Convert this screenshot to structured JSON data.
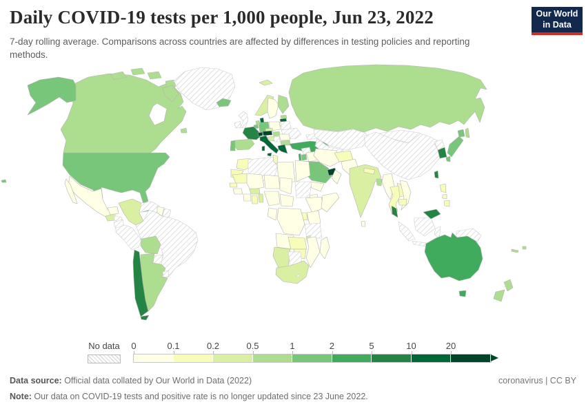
{
  "header": {
    "title": "Daily COVID-19 tests per 1,000 people, Jun 23, 2022",
    "subtitle": "7-day rolling average. Comparisons across countries are affected by differences in testing policies and reporting methods.",
    "logo": {
      "line1": "Our World",
      "line2": "in Data",
      "bg_color": "#12284c",
      "accent_color": "#d12d20"
    }
  },
  "legend": {
    "no_data_label": "No data",
    "tick_labels": [
      "0",
      "0.1",
      "0.2",
      "0.5",
      "1",
      "2",
      "5",
      "10",
      "20"
    ],
    "colors": [
      "#ffffe5",
      "#f7fcb9",
      "#d9f0a3",
      "#addd8e",
      "#78c679",
      "#41ab5d",
      "#238443",
      "#006837",
      "#004529"
    ]
  },
  "footer": {
    "source_label": "Data source:",
    "source_text": " Official data collated by Our World in Data (2022)",
    "note_label": "Note:",
    "note_text": " Our data on COVID-19 tests and positive rate is no longer updated since 23 June 2022.",
    "license": "coronavirus | CC BY"
  },
  "chart_data": {
    "type": "choropleth",
    "title": "Daily COVID-19 tests per 1,000 people",
    "date": "Jun 23, 2022",
    "unit": "tests per 1,000 people",
    "legend_position": "bottom",
    "no_data_style": "hatch",
    "bins": [
      {
        "label": "0-0.1",
        "color": "#ffffe5"
      },
      {
        "label": "0.1-0.2",
        "color": "#f7fcb9"
      },
      {
        "label": "0.2-0.5",
        "color": "#d9f0a3"
      },
      {
        "label": "0.5-1",
        "color": "#addd8e"
      },
      {
        "label": "1-2",
        "color": "#78c679"
      },
      {
        "label": "2-5",
        "color": "#41ab5d"
      },
      {
        "label": "5-10",
        "color": "#238443"
      },
      {
        "label": "10-20",
        "color": "#006837"
      },
      {
        "label": "20+",
        "color": "#004529"
      }
    ],
    "countries": {
      "greenland": {
        "bucket": "No data",
        "color": "hatch"
      },
      "iceland": {
        "bucket": "1-2",
        "color": "#78c679"
      },
      "canada": {
        "bucket": "0.5-1",
        "color": "#addd8e"
      },
      "united-states": {
        "bucket": "1-2",
        "color": "#78c679"
      },
      "mexico": {
        "bucket": "0-0.1",
        "color": "#ffffe5"
      },
      "guatemala": {
        "bucket": "0.2-0.5",
        "color": "#d9f0a3"
      },
      "honduras": {
        "bucket": "No data",
        "color": "hatch"
      },
      "nicaragua": {
        "bucket": "No data",
        "color": "hatch"
      },
      "costa-rica": {
        "bucket": "5-10",
        "color": "#238443"
      },
      "panama": {
        "bucket": "5-10",
        "color": "#238443"
      },
      "cuba": {
        "bucket": "No data",
        "color": "hatch"
      },
      "jamaica": {
        "bucket": "2-5",
        "color": "#41ab5d"
      },
      "dominican-republic": {
        "bucket": "1-2",
        "color": "#78c679"
      },
      "puerto-rico": {
        "bucket": "0.5-1",
        "color": "#addd8e"
      },
      "colombia": {
        "bucket": "0.2-0.5",
        "color": "#d9f0a3"
      },
      "venezuela": {
        "bucket": "No data",
        "color": "hatch"
      },
      "guyana": {
        "bucket": "0-0.1",
        "color": "#ffffe5"
      },
      "suriname": {
        "bucket": "No data",
        "color": "hatch"
      },
      "ecuador": {
        "bucket": "No data",
        "color": "hatch"
      },
      "peru": {
        "bucket": "No data",
        "color": "hatch"
      },
      "brazil": {
        "bucket": "No data",
        "color": "hatch"
      },
      "bolivia": {
        "bucket": "0.5-1",
        "color": "#addd8e"
      },
      "paraguay": {
        "bucket": "No data",
        "color": "hatch"
      },
      "uruguay": {
        "bucket": "No data",
        "color": "hatch"
      },
      "chile": {
        "bucket": "5-10",
        "color": "#238443"
      },
      "argentina": {
        "bucket": "0.5-1",
        "color": "#addd8e"
      },
      "ireland": {
        "bucket": "No data",
        "color": "hatch"
      },
      "united-kingdom": {
        "bucket": "No data",
        "color": "hatch"
      },
      "norway": {
        "bucket": "0.2-0.5",
        "color": "#d9f0a3"
      },
      "sweden": {
        "bucket": "0-0.1",
        "color": "#ffffe5"
      },
      "finland": {
        "bucket": "0.5-1",
        "color": "#addd8e"
      },
      "denmark": {
        "bucket": "10-20",
        "color": "#006837"
      },
      "estonia": {
        "bucket": "0.5-1",
        "color": "#addd8e"
      },
      "latvia": {
        "bucket": "10-20",
        "color": "#006837"
      },
      "lithuania": {
        "bucket": "0-0.1",
        "color": "#ffffe5"
      },
      "belarus": {
        "bucket": "No data",
        "color": "hatch"
      },
      "poland": {
        "bucket": "0-0.1",
        "color": "#ffffe5"
      },
      "germany": {
        "bucket": "1-2",
        "color": "#78c679"
      },
      "netherlands": {
        "bucket": "0.5-1",
        "color": "#addd8e"
      },
      "belgium": {
        "bucket": "1-2",
        "color": "#78c679"
      },
      "france": {
        "bucket": "5-10",
        "color": "#238443"
      },
      "spain": {
        "bucket": "0.5-1",
        "color": "#addd8e"
      },
      "portugal": {
        "bucket": "1-2",
        "color": "#78c679"
      },
      "switzerland": {
        "bucket": "20+",
        "color": "#004529"
      },
      "austria": {
        "bucket": "20+",
        "color": "#004529"
      },
      "czechia": {
        "bucket": "0.2-0.5",
        "color": "#d9f0a3"
      },
      "italy": {
        "bucket": "10-20",
        "color": "#006837"
      },
      "slovenia-croatia": {
        "bucket": "0.2-0.5",
        "color": "#d9f0a3"
      },
      "hungary": {
        "bucket": "0.5-1",
        "color": "#addd8e"
      },
      "serbia-bosnia": {
        "bucket": "No data",
        "color": "hatch"
      },
      "romania": {
        "bucket": "0-0.1",
        "color": "#ffffe5"
      },
      "bulgaria": {
        "bucket": "0.5-1",
        "color": "#addd8e"
      },
      "greece": {
        "bucket": "10-20",
        "color": "#006837"
      },
      "ukraine": {
        "bucket": "No data",
        "color": "hatch"
      },
      "russia": {
        "bucket": "0.5-1",
        "color": "#addd8e"
      },
      "svalbard": {
        "bucket": "0.2-0.5",
        "color": "#d9f0a3"
      },
      "turkey": {
        "bucket": "2-5",
        "color": "#41ab5d"
      },
      "caucasus": {
        "bucket": "No data",
        "color": "hatch"
      },
      "kazakhstan": {
        "bucket": "No data",
        "color": "hatch"
      },
      "central-asia": {
        "bucket": "No data",
        "color": "hatch"
      },
      "mongolia": {
        "bucket": "No data",
        "color": "hatch"
      },
      "china": {
        "bucket": "No data",
        "color": "hatch"
      },
      "north-korea": {
        "bucket": "No data",
        "color": "hatch"
      },
      "south-korea": {
        "bucket": "5-10",
        "color": "#238443"
      },
      "japan": {
        "bucket": "1-2",
        "color": "#78c679"
      },
      "taiwan": {
        "bucket": "5-10",
        "color": "#238443"
      },
      "syria": {
        "bucket": "No data",
        "color": "hatch"
      },
      "iraq": {
        "bucket": "0-0.1",
        "color": "#ffffe5"
      },
      "iran": {
        "bucket": "0-0.1",
        "color": "#ffffe5"
      },
      "israel": {
        "bucket": "2-5",
        "color": "#41ab5d"
      },
      "jordan": {
        "bucket": "1-2",
        "color": "#78c679"
      },
      "saudi-arabia": {
        "bucket": "1-2",
        "color": "#78c679"
      },
      "united-arab-emirates": {
        "bucket": "20+",
        "color": "#004529"
      },
      "oman": {
        "bucket": "0-0.1",
        "color": "#ffffe5"
      },
      "yemen": {
        "bucket": "0-0.1",
        "color": "#ffffe5"
      },
      "afghanistan": {
        "bucket": "0.1-0.2",
        "color": "#f7fcb9"
      },
      "pakistan": {
        "bucket": "0-0.1",
        "color": "#ffffe5"
      },
      "india": {
        "bucket": "0.2-0.5",
        "color": "#d9f0a3"
      },
      "nepal": {
        "bucket": "0.1-0.2",
        "color": "#f7fcb9"
      },
      "bangladesh": {
        "bucket": "0.5-1",
        "color": "#addd8e"
      },
      "sri-lanka": {
        "bucket": "0-0.1",
        "color": "#ffffe5"
      },
      "myanmar": {
        "bucket": "0-0.1",
        "color": "#ffffe5"
      },
      "thailand": {
        "bucket": "0.1-0.2",
        "color": "#f7fcb9"
      },
      "laos": {
        "bucket": "0.1-0.2",
        "color": "#f7fcb9"
      },
      "vietnam": {
        "bucket": "0-0.1",
        "color": "#ffffe5"
      },
      "cambodia": {
        "bucket": "0.1-0.2",
        "color": "#f7fcb9"
      },
      "malaysia": {
        "bucket": "5-10",
        "color": "#238443"
      },
      "indonesia": {
        "bucket": "No data",
        "color": "hatch"
      },
      "papua-new-guinea": {
        "bucket": "No data",
        "color": "hatch"
      },
      "philippines": {
        "bucket": "0.1-0.2",
        "color": "#f7fcb9"
      },
      "australia": {
        "bucket": "2-5",
        "color": "#41ab5d"
      },
      "new-zealand": {
        "bucket": "0.5-1",
        "color": "#addd8e"
      },
      "new-caledonia": {
        "bucket": "0.5-1",
        "color": "#addd8e"
      },
      "fiji": {
        "bucket": "0.5-1",
        "color": "#addd8e"
      },
      "morocco": {
        "bucket": "0.1-0.2",
        "color": "#f7fcb9"
      },
      "western-sahara": {
        "bucket": "0.1-0.2",
        "color": "#f7fcb9"
      },
      "algeria": {
        "bucket": "No data",
        "color": "hatch"
      },
      "tunisia": {
        "bucket": "0.1-0.2",
        "color": "#f7fcb9"
      },
      "libya": {
        "bucket": "0-0.1",
        "color": "#ffffe5"
      },
      "egypt": {
        "bucket": "0-0.1",
        "color": "#ffffe5"
      },
      "mauritania": {
        "bucket": "0.1-0.2",
        "color": "#f7fcb9"
      },
      "mali": {
        "bucket": "0-0.1",
        "color": "#ffffe5"
      },
      "niger": {
        "bucket": "0-0.1",
        "color": "#ffffe5"
      },
      "chad": {
        "bucket": "0-0.1",
        "color": "#ffffe5"
      },
      "sudan": {
        "bucket": "No data",
        "color": "hatch"
      },
      "eritrea": {
        "bucket": "0-0.1",
        "color": "#ffffe5"
      },
      "ethiopia": {
        "bucket": "0-0.1",
        "color": "#ffffe5"
      },
      "somalia": {
        "bucket": "0-0.1",
        "color": "#ffffe5"
      },
      "kenya": {
        "bucket": "0-0.1",
        "color": "#ffffe5"
      },
      "uganda": {
        "bucket": "0.1-0.2",
        "color": "#f7fcb9"
      },
      "rwanda": {
        "bucket": "2-5",
        "color": "#41ab5d"
      },
      "tanzania": {
        "bucket": "No data",
        "color": "hatch"
      },
      "dr-congo": {
        "bucket": "0-0.1",
        "color": "#ffffe5"
      },
      "congo-gabon": {
        "bucket": "0-0.1",
        "color": "#ffffe5"
      },
      "nigeria": {
        "bucket": "0-0.1",
        "color": "#ffffe5"
      },
      "central-african-republic": {
        "bucket": "0-0.1",
        "color": "#ffffe5"
      },
      "senegal": {
        "bucket": "0.1-0.2",
        "color": "#f7fcb9"
      },
      "guinea": {
        "bucket": "0-0.1",
        "color": "#ffffe5"
      },
      "cote-divoire": {
        "bucket": "0-0.1",
        "color": "#ffffe5"
      },
      "ghana": {
        "bucket": "0.1-0.2",
        "color": "#f7fcb9"
      },
      "burkina-faso": {
        "bucket": "0.2-0.5",
        "color": "#d9f0a3"
      },
      "benin-togo": {
        "bucket": "0.2-0.5",
        "color": "#d9f0a3"
      },
      "angola": {
        "bucket": "0-0.1",
        "color": "#ffffe5"
      },
      "zambia": {
        "bucket": "0.1-0.2",
        "color": "#f7fcb9"
      },
      "zimbabwe": {
        "bucket": "0.1-0.2",
        "color": "#f7fcb9"
      },
      "malawi": {
        "bucket": "0.2-0.5",
        "color": "#d9f0a3"
      },
      "mozambique": {
        "bucket": "0-0.1",
        "color": "#ffffe5"
      },
      "namibia": {
        "bucket": "0.2-0.5",
        "color": "#d9f0a3"
      },
      "botswana": {
        "bucket": "No data",
        "color": "hatch"
      },
      "south-africa": {
        "bucket": "0.2-0.5",
        "color": "#d9f0a3"
      },
      "lesotho": {
        "bucket": "No data",
        "color": "hatch"
      },
      "madagascar": {
        "bucket": "0-0.1",
        "color": "#ffffe5"
      }
    }
  }
}
